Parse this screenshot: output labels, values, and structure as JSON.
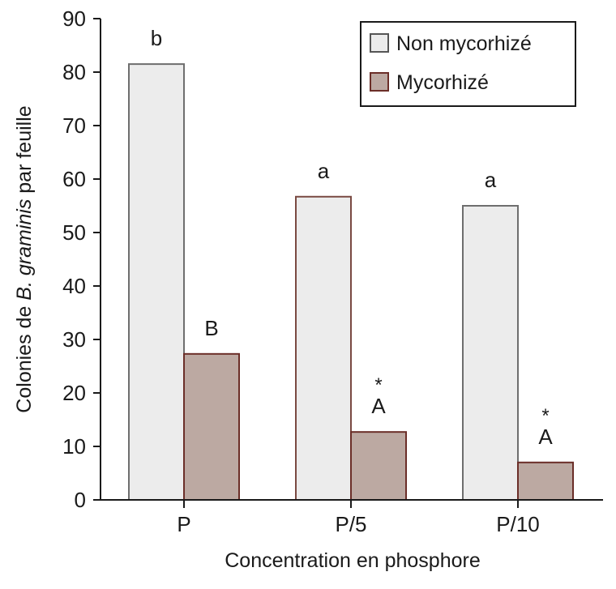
{
  "chart_data": {
    "type": "bar",
    "xlabel": "Concentration en phosphore",
    "ylabel": {
      "prefix": "Colonies de ",
      "italic": "B. graminis",
      "suffix": " par feuille"
    },
    "ylim": [
      0,
      90
    ],
    "yticks": [
      "0",
      "10",
      "20",
      "30",
      "40",
      "50",
      "60",
      "70",
      "80",
      "90"
    ],
    "categories": [
      "P",
      "P/5",
      "P/10"
    ],
    "series": [
      {
        "name": "Non mycorhizé",
        "color": "#ececec",
        "stroke": [
          "#6e6e6e",
          "#7a4a42",
          "#6e6e6e"
        ],
        "values": [
          81.5,
          56.7,
          55.0
        ],
        "labels": [
          "b",
          "a",
          "a"
        ],
        "stars": [
          false,
          false,
          false
        ]
      },
      {
        "name": "Mycorhizé",
        "color": "#bca9a2",
        "stroke": [
          "#6b2e28",
          "#6b2e28",
          "#6b2e28"
        ],
        "values": [
          27.3,
          12.7,
          7.0
        ],
        "labels": [
          "B",
          "A",
          "A"
        ],
        "stars": [
          false,
          true,
          true
        ]
      }
    ],
    "legend": {
      "position": "top-right"
    },
    "grid": false
  }
}
